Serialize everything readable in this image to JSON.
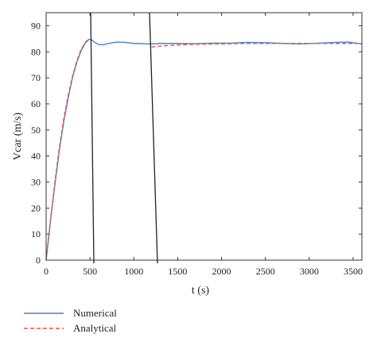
{
  "chart_data": {
    "type": "line",
    "xlabel": "t (s)",
    "ylabel": "Vcar (m/s)",
    "xlim": [
      0,
      3600
    ],
    "ylim": [
      0,
      95
    ],
    "xticks": [
      0,
      500,
      1000,
      1500,
      2000,
      2500,
      3000,
      3500
    ],
    "yticks": [
      0,
      10,
      20,
      30,
      40,
      50,
      60,
      70,
      80,
      90
    ],
    "grid": false,
    "legend_position": "below-left",
    "series": [
      {
        "name": "Numerical",
        "color": "#4a7fd4",
        "style": "solid",
        "x": [
          0,
          50,
          100,
          150,
          200,
          250,
          300,
          350,
          400,
          450,
          490,
          520,
          560,
          600,
          650,
          700,
          800,
          900,
          1000,
          1100,
          1200,
          1300,
          1500,
          1700,
          1900,
          2100,
          2300,
          2500,
          2700,
          2900,
          3100,
          3300,
          3450,
          3600
        ],
        "y": [
          0,
          15,
          29,
          42,
          53,
          62,
          70,
          76,
          80.5,
          83.5,
          84.8,
          84.5,
          83.5,
          82.8,
          82.7,
          83.1,
          83.7,
          83.6,
          83.2,
          83.1,
          83.0,
          83.2,
          83.2,
          83.1,
          83.3,
          83.3,
          83.6,
          83.5,
          83.2,
          83.0,
          83.3,
          83.6,
          83.7,
          83.0
        ]
      },
      {
        "name": "Analytical",
        "color": "#e05a3a",
        "style": "dashed",
        "x": [
          0,
          50,
          100,
          150,
          200,
          250,
          300,
          350,
          400,
          450,
          480,
          500,
          520
        ],
        "y": [
          0,
          15.5,
          30,
          43,
          54,
          63,
          70.5,
          76.5,
          81,
          83.8,
          84.6,
          84.8,
          84.7
        ]
      },
      {
        "name": "Analytical",
        "color": "#e05a3a",
        "style": "dashed",
        "x": [
          1200,
          1300,
          1500,
          1700,
          1900,
          2100,
          2300,
          2500,
          2700,
          2900,
          3100,
          3300,
          3500,
          3600
        ],
        "y": [
          81.8,
          82.2,
          82.6,
          82.9,
          83.0,
          83.1,
          83.2,
          83.2,
          83.2,
          83.2,
          83.2,
          83.2,
          83.2,
          83.2
        ]
      }
    ],
    "legend": [
      "Numerical",
      "Analytical"
    ]
  }
}
